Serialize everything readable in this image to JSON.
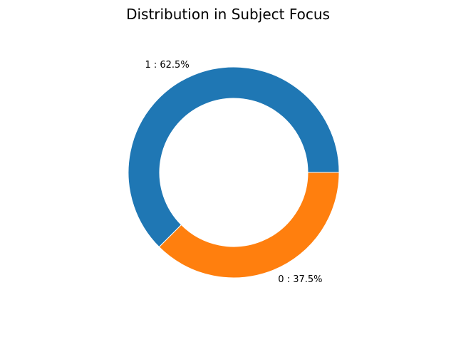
{
  "chart_data": {
    "type": "pie",
    "style": "donut",
    "title": "Distribution in Subject Focus",
    "slices": [
      {
        "category": "1",
        "label": "1 : 62.5%",
        "value": 62.5,
        "color": "#1f77b4"
      },
      {
        "category": "0",
        "label": "0 : 37.5%",
        "value": 37.5,
        "color": "#ff7f0e"
      }
    ],
    "legend": "none"
  }
}
